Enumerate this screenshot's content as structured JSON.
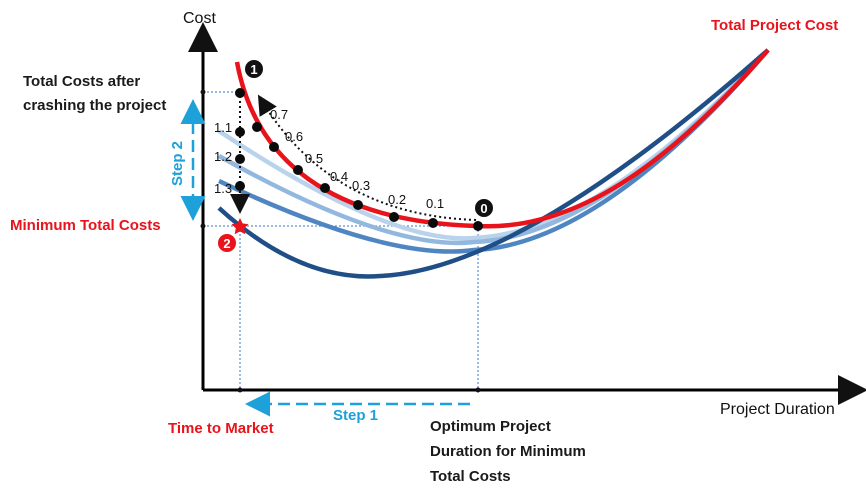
{
  "axes": {
    "y_label": "Cost",
    "x_label": "Project Duration"
  },
  "labels": {
    "total_project_cost": "Total Project Cost",
    "total_costs_after_line1": "Total Costs after",
    "total_costs_after_line2": "crashing the project",
    "minimum_total_costs": "Minimum Total Costs",
    "time_to_market": "Time to Market",
    "optimum_line1": "Optimum Project",
    "optimum_line2": "Duration for Minimum",
    "optimum_line3": "Total Costs",
    "step1": "Step 1",
    "step2": "Step 2"
  },
  "markers": {
    "point_0": "0",
    "point_1": "1",
    "point_2": "2"
  },
  "upper_values": [
    "0.1",
    "0.2",
    "0.3",
    "0.4",
    "0.5",
    "0.6",
    "0.7"
  ],
  "left_values": [
    "1.1",
    "1.2",
    "1.3"
  ],
  "colors": {
    "red": "#e8131b",
    "blue_label": "#1ea0d8",
    "curve_light": "#b9d3ec",
    "curve_mid1": "#92b8df",
    "curve_mid2": "#4f86c2",
    "curve_dark": "#1f4f86"
  }
}
